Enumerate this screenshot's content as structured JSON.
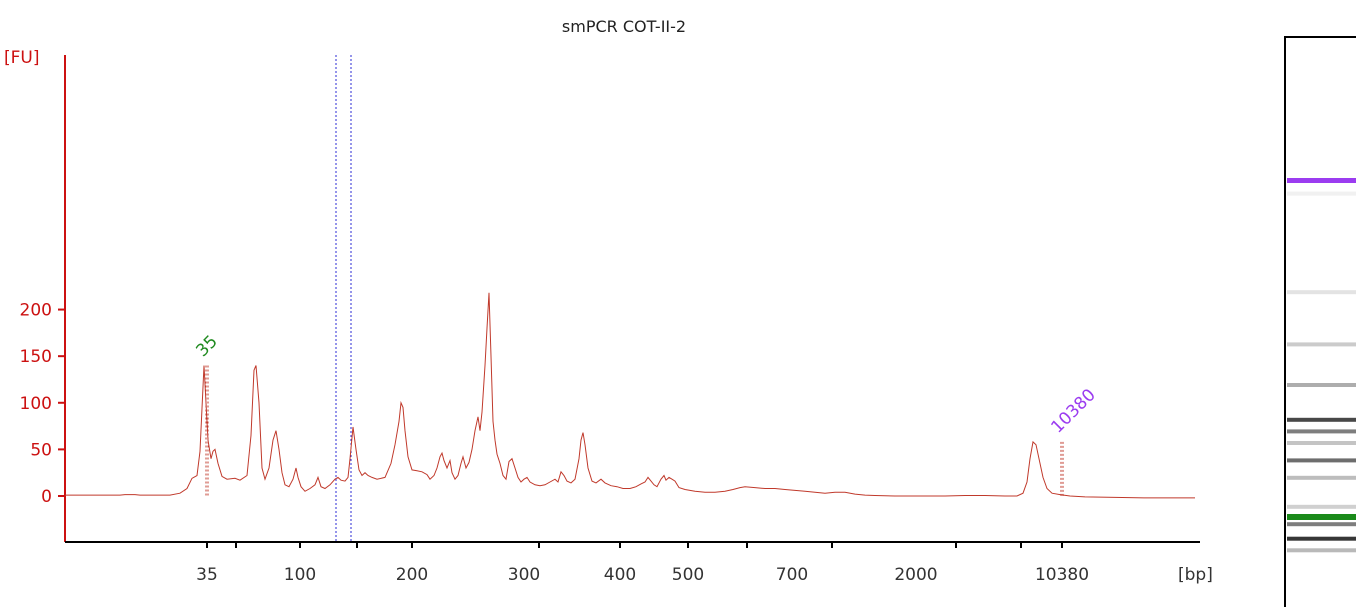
{
  "chart_data": {
    "type": "line",
    "title": "smPCR COT-II-2",
    "ylabel": "[FU]",
    "xlabel": "[bp]",
    "ylim": [
      -24,
      240
    ],
    "y_ticks": [
      0,
      50,
      100,
      150,
      200
    ],
    "x_tick_labels": [
      "35",
      "100",
      "200",
      "300",
      "400",
      "500",
      "700",
      "2000",
      "10380"
    ],
    "markers": [
      {
        "label": "35",
        "x": "35",
        "y": 140,
        "color": "#1f8a1f"
      },
      {
        "label": "10380",
        "x": "10380",
        "y": 58,
        "color": "#9b3cf0"
      }
    ],
    "series": [
      {
        "color": "#c0392b",
        "points": [
          [
            0,
            1
          ],
          [
            55,
            1
          ],
          [
            60,
            1.5
          ],
          [
            70,
            1.5
          ],
          [
            75,
            1
          ],
          [
            105,
            1
          ],
          [
            115,
            3
          ],
          [
            122,
            8
          ],
          [
            127,
            19
          ],
          [
            132,
            22
          ],
          [
            135,
            48
          ],
          [
            139,
            140
          ],
          [
            143,
            60
          ],
          [
            146,
            40
          ],
          [
            148,
            48
          ],
          [
            150,
            50
          ],
          [
            153,
            35
          ],
          [
            157,
            21
          ],
          [
            162,
            18
          ],
          [
            170,
            19
          ],
          [
            175,
            17
          ],
          [
            182,
            22
          ],
          [
            186,
            65
          ],
          [
            189,
            135
          ],
          [
            191,
            140
          ],
          [
            194,
            100
          ],
          [
            197,
            30
          ],
          [
            200,
            18
          ],
          [
            204,
            30
          ],
          [
            208,
            60
          ],
          [
            211,
            70
          ],
          [
            214,
            50
          ],
          [
            217,
            25
          ],
          [
            220,
            12
          ],
          [
            224,
            10
          ],
          [
            228,
            18
          ],
          [
            231,
            30
          ],
          [
            233,
            20
          ],
          [
            236,
            10
          ],
          [
            240,
            5
          ],
          [
            245,
            8
          ],
          [
            250,
            12
          ],
          [
            253,
            20
          ],
          [
            256,
            10
          ],
          [
            260,
            8
          ],
          [
            265,
            12
          ],
          [
            270,
            18
          ],
          [
            273,
            20
          ],
          [
            276,
            17
          ],
          [
            280,
            16
          ],
          [
            283,
            20
          ],
          [
            285,
            40
          ],
          [
            288,
            74
          ],
          [
            291,
            50
          ],
          [
            294,
            28
          ],
          [
            297,
            22
          ],
          [
            300,
            25
          ],
          [
            303,
            22
          ],
          [
            307,
            20
          ],
          [
            312,
            18
          ],
          [
            320,
            20
          ],
          [
            326,
            35
          ],
          [
            330,
            55
          ],
          [
            334,
            80
          ],
          [
            336,
            100
          ],
          [
            338,
            95
          ],
          [
            340,
            70
          ],
          [
            343,
            42
          ],
          [
            347,
            28
          ],
          [
            352,
            27
          ],
          [
            357,
            26
          ],
          [
            362,
            23
          ],
          [
            365,
            18
          ],
          [
            369,
            22
          ],
          [
            372,
            30
          ],
          [
            375,
            42
          ],
          [
            377,
            46
          ],
          [
            379,
            38
          ],
          [
            382,
            30
          ],
          [
            385,
            38
          ],
          [
            387,
            25
          ],
          [
            390,
            18
          ],
          [
            393,
            22
          ],
          [
            396,
            35
          ],
          [
            398,
            42
          ],
          [
            401,
            30
          ],
          [
            404,
            36
          ],
          [
            407,
            50
          ],
          [
            410,
            70
          ],
          [
            413,
            85
          ],
          [
            415,
            70
          ],
          [
            417,
            90
          ],
          [
            420,
            140
          ],
          [
            422,
            180
          ],
          [
            424,
            218
          ],
          [
            426,
            150
          ],
          [
            428,
            80
          ],
          [
            430,
            60
          ],
          [
            432,
            45
          ],
          [
            435,
            35
          ],
          [
            438,
            22
          ],
          [
            441,
            18
          ],
          [
            444,
            37
          ],
          [
            447,
            40
          ],
          [
            450,
            30
          ],
          [
            453,
            20
          ],
          [
            456,
            15
          ],
          [
            459,
            18
          ],
          [
            462,
            20
          ],
          [
            465,
            15
          ],
          [
            470,
            12
          ],
          [
            475,
            11
          ],
          [
            480,
            12
          ],
          [
            485,
            15
          ],
          [
            490,
            18
          ],
          [
            493,
            15
          ],
          [
            496,
            26
          ],
          [
            499,
            22
          ],
          [
            502,
            16
          ],
          [
            506,
            14
          ],
          [
            510,
            18
          ],
          [
            514,
            40
          ],
          [
            516,
            60
          ],
          [
            518,
            68
          ],
          [
            520,
            55
          ],
          [
            523,
            30
          ],
          [
            527,
            16
          ],
          [
            531,
            14
          ],
          [
            536,
            18
          ],
          [
            540,
            14
          ],
          [
            546,
            11
          ],
          [
            552,
            10
          ],
          [
            558,
            8
          ],
          [
            565,
            8
          ],
          [
            571,
            10
          ],
          [
            576,
            13
          ],
          [
            580,
            15
          ],
          [
            583,
            20
          ],
          [
            586,
            16
          ],
          [
            589,
            12
          ],
          [
            592,
            10
          ],
          [
            596,
            18
          ],
          [
            599,
            22
          ],
          [
            601,
            17
          ],
          [
            604,
            20
          ],
          [
            607,
            18
          ],
          [
            610,
            16
          ],
          [
            614,
            9
          ],
          [
            620,
            7
          ],
          [
            630,
            5
          ],
          [
            640,
            4
          ],
          [
            650,
            4
          ],
          [
            660,
            5
          ],
          [
            668,
            7
          ],
          [
            675,
            9
          ],
          [
            680,
            10
          ],
          [
            690,
            9
          ],
          [
            700,
            8
          ],
          [
            710,
            8
          ],
          [
            720,
            7
          ],
          [
            730,
            6
          ],
          [
            740,
            5
          ],
          [
            750,
            4
          ],
          [
            760,
            3
          ],
          [
            770,
            4
          ],
          [
            780,
            4
          ],
          [
            790,
            2
          ],
          [
            800,
            1
          ],
          [
            810,
            0.5
          ],
          [
            830,
            0
          ],
          [
            860,
            0
          ],
          [
            880,
            0
          ],
          [
            900,
            0.5
          ],
          [
            920,
            0.5
          ],
          [
            940,
            0
          ],
          [
            952,
            0
          ],
          [
            958,
            3
          ],
          [
            962,
            15
          ],
          [
            965,
            40
          ],
          [
            968,
            58
          ],
          [
            971,
            55
          ],
          [
            974,
            40
          ],
          [
            978,
            20
          ],
          [
            982,
            8
          ],
          [
            987,
            3
          ],
          [
            995,
            1.5
          ],
          [
            1005,
            0
          ],
          [
            1020,
            -1
          ],
          [
            1050,
            -1.5
          ],
          [
            1080,
            -2
          ],
          [
            1105,
            -2
          ],
          [
            1130,
            -2
          ]
        ]
      }
    ]
  },
  "gel": {
    "upper_marker_color": "#9b3cf0",
    "lower_marker_color": "#1a8a1a",
    "bands": [
      {
        "pos": 0.27,
        "intensity": 0.06
      },
      {
        "pos": 0.44,
        "intensity": 0.12
      },
      {
        "pos": 0.53,
        "intensity": 0.22
      },
      {
        "pos": 0.6,
        "intensity": 0.35
      },
      {
        "pos": 0.66,
        "intensity": 0.78
      },
      {
        "pos": 0.68,
        "intensity": 0.55
      },
      {
        "pos": 0.7,
        "intensity": 0.25
      },
      {
        "pos": 0.73,
        "intensity": 0.62
      },
      {
        "pos": 0.76,
        "intensity": 0.28
      },
      {
        "pos": 0.81,
        "intensity": 0.2
      },
      {
        "pos": 0.84,
        "intensity": 0.55
      },
      {
        "pos": 0.865,
        "intensity": 0.85
      },
      {
        "pos": 0.885,
        "intensity": 0.3
      }
    ]
  }
}
